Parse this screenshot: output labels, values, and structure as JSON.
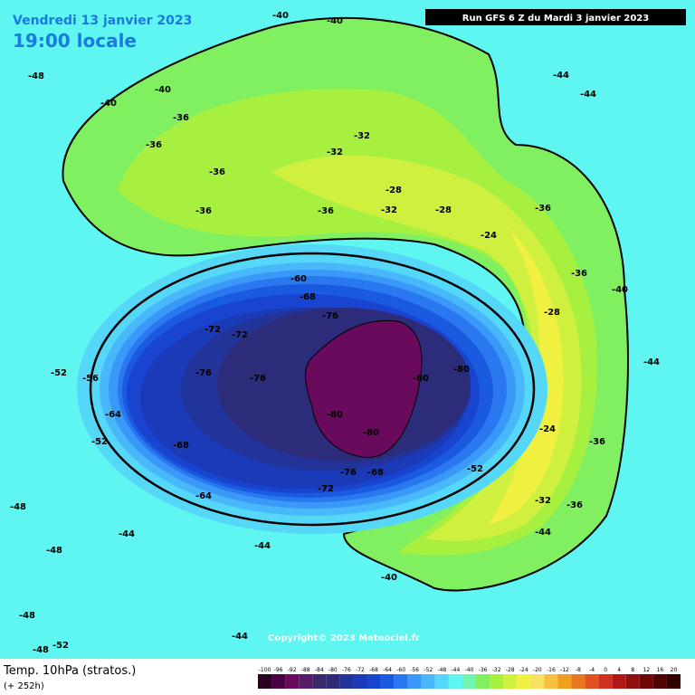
{
  "header": {
    "title": "Vendredi 13 janvier 2023",
    "time": "19:00 locale",
    "run": "Run GFS 6 Z du Mardi 3 janvier 2023"
  },
  "footer": {
    "field": "Temp. 10hPa (stratos.)",
    "lead": "(+ 252h)",
    "copyright": "Copyright© 2023 Meteociel.fr"
  },
  "legend": {
    "levels": [
      -100,
      -96,
      -92,
      -88,
      -84,
      -80,
      -76,
      -72,
      -68,
      -64,
      -60,
      -56,
      -52,
      -48,
      -44,
      -40,
      -36,
      -32,
      -28,
      -24,
      -20,
      -16,
      -12,
      -8,
      -4,
      0,
      4,
      8,
      12,
      16,
      20
    ],
    "colors": [
      "#2a0020",
      "#4b0046",
      "#6a0a5c",
      "#5a1a6a",
      "#3a2a6a",
      "#2c2c7a",
      "#22339a",
      "#1a3ab8",
      "#1844d0",
      "#1a5ae0",
      "#2a78f0",
      "#3a98f8",
      "#48b8fa",
      "#55d8f8",
      "#5ff5f0",
      "#6ef5b0",
      "#80f060",
      "#a8f040",
      "#d0f040",
      "#f0f040",
      "#f8e060",
      "#f8c040",
      "#f0a020",
      "#e87820",
      "#e05020",
      "#d03020",
      "#b01818",
      "#901010",
      "#700808",
      "#500404",
      "#300000"
    ]
  },
  "contour_labels": [
    "-40",
    "-40",
    "-40",
    "-40",
    "-36",
    "-36",
    "-36",
    "-36",
    "-32",
    "-32",
    "-32",
    "-28",
    "-28",
    "-24",
    "-36",
    "-36",
    "-40",
    "-44",
    "-44",
    "-44",
    "-48",
    "-48",
    "-48",
    "-48",
    "-52",
    "-52",
    "-56",
    "-60",
    "-64",
    "-68",
    "-72",
    "-72",
    "-76",
    "-76",
    "-76",
    "-80",
    "-80",
    "-80",
    "-80",
    "-76",
    "-72",
    "-68",
    "-68",
    "-64",
    "-52",
    "-28",
    "-24",
    "-32",
    "-36",
    "-36",
    "-44",
    "-44",
    "-44",
    "-40",
    "-36",
    "-48",
    "-52",
    "-44"
  ]
}
